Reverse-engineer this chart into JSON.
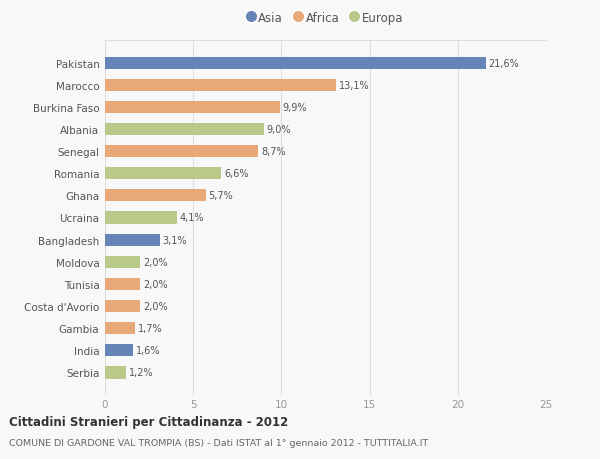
{
  "countries": [
    "Pakistan",
    "Marocco",
    "Burkina Faso",
    "Albania",
    "Senegal",
    "Romania",
    "Ghana",
    "Ucraina",
    "Bangladesh",
    "Moldova",
    "Tunisia",
    "Costa d'Avorio",
    "Gambia",
    "India",
    "Serbia"
  ],
  "values": [
    21.6,
    13.1,
    9.9,
    9.0,
    8.7,
    6.6,
    5.7,
    4.1,
    3.1,
    2.0,
    2.0,
    2.0,
    1.7,
    1.6,
    1.2
  ],
  "labels": [
    "21,6%",
    "13,1%",
    "9,9%",
    "9,0%",
    "8,7%",
    "6,6%",
    "5,7%",
    "4,1%",
    "3,1%",
    "2,0%",
    "2,0%",
    "2,0%",
    "1,7%",
    "1,6%",
    "1,2%"
  ],
  "continent": [
    "Asia",
    "Africa",
    "Africa",
    "Europa",
    "Africa",
    "Europa",
    "Africa",
    "Europa",
    "Asia",
    "Europa",
    "Africa",
    "Africa",
    "Africa",
    "Asia",
    "Europa"
  ],
  "colors": {
    "Asia": "#6585b8",
    "Africa": "#e8a878",
    "Europa": "#b8c98a"
  },
  "title1": "Cittadini Stranieri per Cittadinanza - 2012",
  "title2": "COMUNE DI GARDONE VAL TROMPIA (BS) - Dati ISTAT al 1° gennaio 2012 - TUTTITALIA.IT",
  "xlim": [
    0,
    25
  ],
  "xticks": [
    0,
    5,
    10,
    15,
    20,
    25
  ],
  "background_color": "#f8f8f8",
  "grid_color": "#dddddd",
  "legend_items": [
    "Asia",
    "Africa",
    "Europa"
  ],
  "bar_height": 0.55
}
